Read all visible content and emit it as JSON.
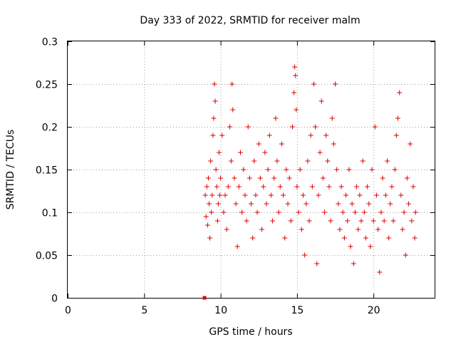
{
  "chart_data": {
    "type": "scatter",
    "title": "Day 333 of 2022, SRMTID for receiver malm",
    "xlabel": "GPS time / hours",
    "ylabel": "SRMTID / TECUs",
    "xlim": [
      0,
      24
    ],
    "ylim": [
      0,
      0.3
    ],
    "x_ticks": [
      0,
      5,
      10,
      15,
      20
    ],
    "y_ticks": [
      0,
      0.05,
      0.1,
      0.15,
      0.2,
      0.25,
      0.3
    ],
    "x_tick_labels": [
      "0",
      "5",
      "10",
      "15",
      "20"
    ],
    "y_tick_labels": [
      "0",
      "0.05",
      "0.1",
      "0.15",
      "0.2",
      "0.25",
      "0.3"
    ],
    "grid": true,
    "marker": "+",
    "color": "#e00000",
    "baseline_point": {
      "x": 8.95,
      "y": 0
    },
    "series": [
      {
        "name": "SRMTID",
        "points": [
          [
            9.0,
            0.12
          ],
          [
            9.05,
            0.095
          ],
          [
            9.1,
            0.13
          ],
          [
            9.15,
            0.085
          ],
          [
            9.2,
            0.14
          ],
          [
            9.25,
            0.11
          ],
          [
            9.3,
            0.07
          ],
          [
            9.35,
            0.16
          ],
          [
            9.4,
            0.1
          ],
          [
            9.45,
            0.12
          ],
          [
            9.5,
            0.19
          ],
          [
            9.55,
            0.21
          ],
          [
            9.6,
            0.25
          ],
          [
            9.65,
            0.23
          ],
          [
            9.7,
            0.15
          ],
          [
            9.75,
            0.13
          ],
          [
            9.8,
            0.09
          ],
          [
            9.85,
            0.11
          ],
          [
            9.9,
            0.17
          ],
          [
            9.95,
            0.12
          ],
          [
            10.0,
            0.14
          ],
          [
            10.1,
            0.19
          ],
          [
            10.2,
            0.1
          ],
          [
            10.3,
            0.12
          ],
          [
            10.4,
            0.08
          ],
          [
            10.5,
            0.13
          ],
          [
            10.6,
            0.2
          ],
          [
            10.7,
            0.16
          ],
          [
            10.75,
            0.25
          ],
          [
            10.8,
            0.22
          ],
          [
            10.9,
            0.14
          ],
          [
            11.0,
            0.11
          ],
          [
            11.1,
            0.06
          ],
          [
            11.2,
            0.13
          ],
          [
            11.3,
            0.17
          ],
          [
            11.4,
            0.1
          ],
          [
            11.5,
            0.15
          ],
          [
            11.6,
            0.12
          ],
          [
            11.7,
            0.09
          ],
          [
            11.8,
            0.2
          ],
          [
            11.9,
            0.14
          ],
          [
            12.0,
            0.11
          ],
          [
            12.1,
            0.07
          ],
          [
            12.2,
            0.16
          ],
          [
            12.3,
            0.12
          ],
          [
            12.4,
            0.1
          ],
          [
            12.5,
            0.18
          ],
          [
            12.6,
            0.14
          ],
          [
            12.7,
            0.08
          ],
          [
            12.8,
            0.13
          ],
          [
            12.9,
            0.17
          ],
          [
            13.0,
            0.11
          ],
          [
            13.1,
            0.15
          ],
          [
            13.2,
            0.19
          ],
          [
            13.3,
            0.12
          ],
          [
            13.4,
            0.09
          ],
          [
            13.5,
            0.14
          ],
          [
            13.6,
            0.21
          ],
          [
            13.7,
            0.16
          ],
          [
            13.8,
            0.1
          ],
          [
            13.9,
            0.13
          ],
          [
            14.0,
            0.18
          ],
          [
            14.1,
            0.12
          ],
          [
            14.2,
            0.07
          ],
          [
            14.3,
            0.15
          ],
          [
            14.4,
            0.11
          ],
          [
            14.5,
            0.14
          ],
          [
            14.6,
            0.09
          ],
          [
            14.7,
            0.2
          ],
          [
            14.8,
            0.24
          ],
          [
            14.85,
            0.27
          ],
          [
            14.9,
            0.26
          ],
          [
            14.95,
            0.22
          ],
          [
            15.0,
            0.13
          ],
          [
            15.1,
            0.1
          ],
          [
            15.2,
            0.15
          ],
          [
            15.3,
            0.08
          ],
          [
            15.4,
            0.12
          ],
          [
            15.5,
            0.05
          ],
          [
            15.6,
            0.11
          ],
          [
            15.7,
            0.16
          ],
          [
            15.8,
            0.09
          ],
          [
            15.9,
            0.19
          ],
          [
            16.0,
            0.13
          ],
          [
            16.1,
            0.25
          ],
          [
            16.2,
            0.2
          ],
          [
            16.3,
            0.04
          ],
          [
            16.4,
            0.12
          ],
          [
            16.5,
            0.17
          ],
          [
            16.6,
            0.23
          ],
          [
            16.7,
            0.14
          ],
          [
            16.8,
            0.1
          ],
          [
            16.9,
            0.19
          ],
          [
            17.0,
            0.16
          ],
          [
            17.1,
            0.13
          ],
          [
            17.2,
            0.09
          ],
          [
            17.3,
            0.21
          ],
          [
            17.4,
            0.18
          ],
          [
            17.5,
            0.25
          ],
          [
            17.6,
            0.15
          ],
          [
            17.7,
            0.11
          ],
          [
            17.8,
            0.08
          ],
          [
            17.9,
            0.13
          ],
          [
            18.0,
            0.1
          ],
          [
            18.1,
            0.07
          ],
          [
            18.2,
            0.12
          ],
          [
            18.3,
            0.09
          ],
          [
            18.4,
            0.15
          ],
          [
            18.5,
            0.06
          ],
          [
            18.6,
            0.11
          ],
          [
            18.7,
            0.04
          ],
          [
            18.8,
            0.1
          ],
          [
            18.9,
            0.13
          ],
          [
            19.0,
            0.08
          ],
          [
            19.1,
            0.12
          ],
          [
            19.2,
            0.09
          ],
          [
            19.3,
            0.16
          ],
          [
            19.4,
            0.1
          ],
          [
            19.5,
            0.07
          ],
          [
            19.6,
            0.13
          ],
          [
            19.7,
            0.11
          ],
          [
            19.8,
            0.06
          ],
          [
            19.9,
            0.15
          ],
          [
            20.0,
            0.09
          ],
          [
            20.1,
            0.2
          ],
          [
            20.2,
            0.12
          ],
          [
            20.3,
            0.08
          ],
          [
            20.4,
            0.03
          ],
          [
            20.5,
            0.1
          ],
          [
            20.6,
            0.14
          ],
          [
            20.7,
            0.09
          ],
          [
            20.8,
            0.12
          ],
          [
            20.9,
            0.16
          ],
          [
            21.0,
            0.07
          ],
          [
            21.1,
            0.11
          ],
          [
            21.2,
            0.13
          ],
          [
            21.3,
            0.09
          ],
          [
            21.4,
            0.15
          ],
          [
            21.5,
            0.19
          ],
          [
            21.6,
            0.21
          ],
          [
            21.7,
            0.24
          ],
          [
            21.8,
            0.12
          ],
          [
            21.9,
            0.08
          ],
          [
            22.0,
            0.1
          ],
          [
            22.1,
            0.05
          ],
          [
            22.2,
            0.14
          ],
          [
            22.3,
            0.11
          ],
          [
            22.4,
            0.18
          ],
          [
            22.5,
            0.09
          ],
          [
            22.6,
            0.13
          ],
          [
            22.7,
            0.07
          ],
          [
            22.75,
            0.1
          ]
        ]
      }
    ]
  }
}
